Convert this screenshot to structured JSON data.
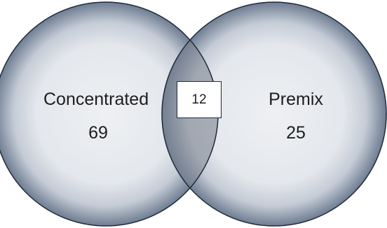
{
  "diagram": {
    "type": "venn",
    "sets": [
      {
        "name": "Concentrated",
        "count": "69"
      },
      {
        "name": "Premix",
        "count": "25"
      }
    ],
    "overlap": {
      "count": "12"
    },
    "colors": {
      "circle_fill_center": "#eceef2",
      "circle_fill_edge": "#6e7d92",
      "overlap_fill": "#a3a9b3",
      "outline": "#1f2a3a",
      "text": "#1e1e1e"
    }
  }
}
